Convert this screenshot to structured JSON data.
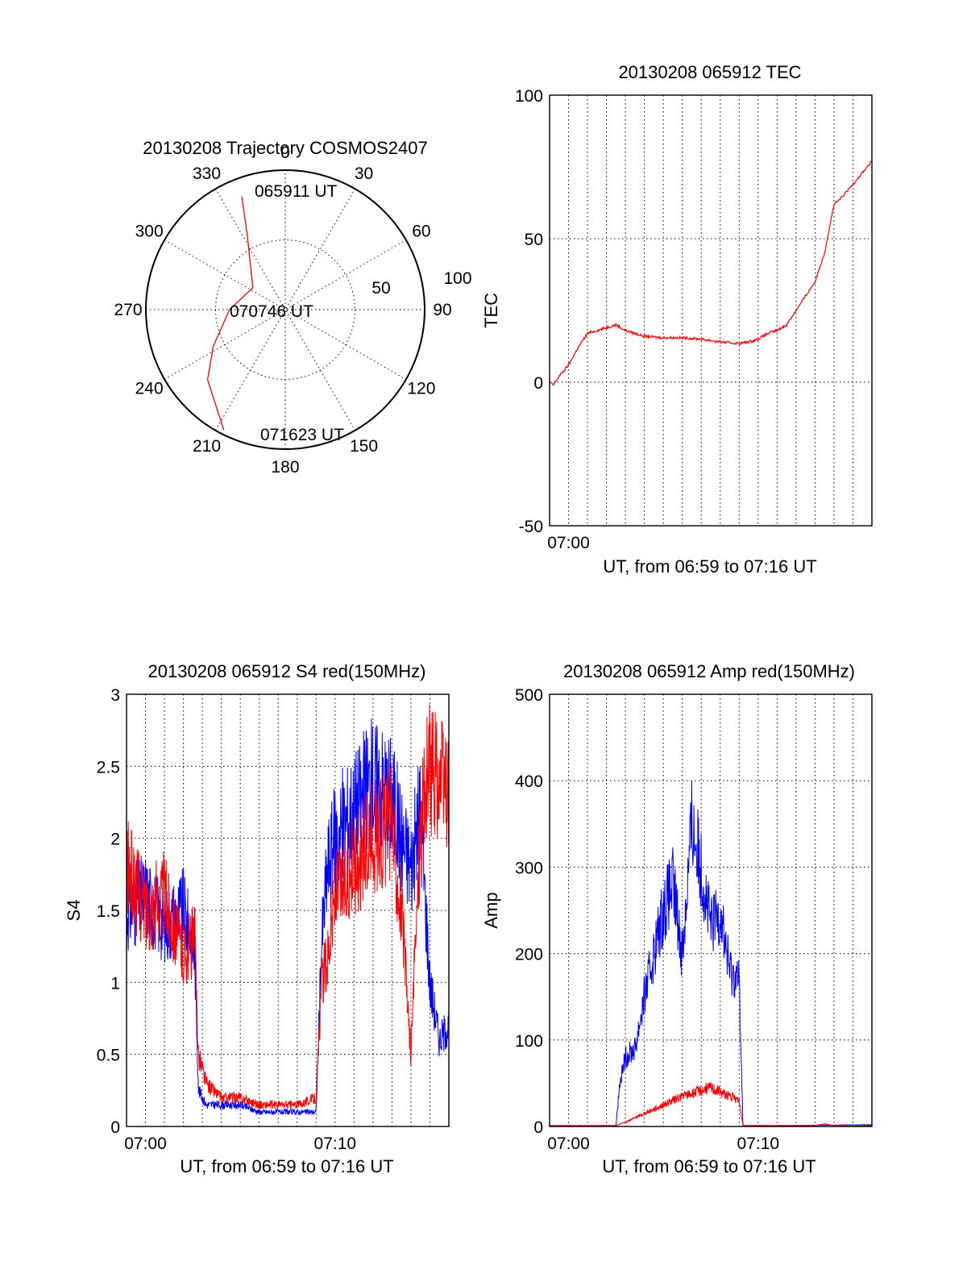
{
  "colors": {
    "red": "#ff0000",
    "blue": "#0000ff",
    "axis": "#000000"
  },
  "chart_data": [
    {
      "type": "polar",
      "title": "20130208 Trajectory COSMOS2407",
      "angle_labels": [
        "0",
        "30",
        "60",
        "90",
        "120",
        "150",
        "180",
        "210",
        "240",
        "270",
        "300",
        "330"
      ],
      "radius_labels": [
        "50",
        "100"
      ],
      "annotations": [
        "065911 UT",
        "070746 UT",
        "071623 UT"
      ],
      "series": [
        {
          "color": "#ff0000",
          "points": [
            [
              339,
              87
            ],
            [
              333,
              60
            ],
            [
              304,
              28
            ],
            [
              270,
              40
            ],
            [
              243,
              58
            ],
            [
              228,
              75
            ],
            [
              207,
              97
            ]
          ]
        }
      ]
    },
    {
      "type": "line",
      "title": "20130208 065912 TEC",
      "ylabel": "TEC",
      "xlabel": "UT, from 06:59 to 07:16 UT",
      "xlim": [
        0,
        17
      ],
      "ylim": [
        -50,
        100
      ],
      "yticks": [
        "-50",
        "0",
        "50",
        "100"
      ],
      "xtick_labels": [
        {
          "x": 1,
          "label": "07:00"
        }
      ],
      "grid": true,
      "series": [
        {
          "color": "#ff0000",
          "x": [
            0,
            0.2,
            0.5,
            1.0,
            1.5,
            2.0,
            2.5,
            3.0,
            3.5,
            4.0,
            5.0,
            6.0,
            7.0,
            8.0,
            9.0,
            10.0,
            10.5,
            11.0,
            11.5,
            12.0,
            12.5,
            13.0,
            13.5,
            14.0,
            14.5,
            15.0,
            15.2,
            15.5,
            16.0,
            16.5,
            17.0
          ],
          "values": [
            0,
            -1,
            2,
            6,
            12,
            17,
            18,
            19,
            20,
            18,
            16,
            15.5,
            15.5,
            15,
            14,
            13.5,
            14,
            15,
            17,
            18,
            20,
            25,
            30,
            35,
            45,
            62,
            63,
            65,
            69,
            73,
            77
          ]
        }
      ]
    },
    {
      "type": "line",
      "title": "20130208 065912 S4 red(150MHz)",
      "ylabel": "S4",
      "xlabel": "UT, from 06:59 to 07:16 UT",
      "xlim": [
        0,
        17
      ],
      "ylim": [
        0,
        3
      ],
      "yticks": [
        "0",
        "0.5",
        "1",
        "1.5",
        "2",
        "2.5",
        "3"
      ],
      "xtick_labels": [
        {
          "x": 1,
          "label": "07:00"
        },
        {
          "x": 11,
          "label": "07:10"
        }
      ],
      "grid": true,
      "series": [
        {
          "color": "#0000ff",
          "x": [
            0,
            1,
            2,
            3,
            3.6,
            3.8,
            4.2,
            5,
            6,
            7,
            8,
            9,
            10,
            10.3,
            10.6,
            11,
            12,
            13,
            14,
            14.5,
            15,
            15.5,
            16,
            16.5,
            17
          ],
          "values": [
            1.5,
            1.6,
            1.4,
            1.5,
            1.2,
            0.25,
            0.15,
            0.15,
            0.15,
            0.1,
            0.1,
            0.1,
            0.1,
            1.3,
            1.8,
            2.0,
            2.2,
            2.4,
            2.3,
            2.0,
            1.8,
            2.2,
            1.0,
            0.6,
            0.7
          ]
        },
        {
          "color": "#ff0000",
          "x": [
            0,
            1,
            2,
            3,
            3.6,
            3.8,
            4.2,
            5,
            6,
            7,
            8,
            9,
            10,
            10.3,
            10.6,
            11,
            12,
            13,
            14,
            14.5,
            15,
            15.5,
            16,
            16.5,
            17
          ],
          "values": [
            1.8,
            1.5,
            1.6,
            1.2,
            1.3,
            0.5,
            0.3,
            0.2,
            0.2,
            0.15,
            0.15,
            0.15,
            0.2,
            1.0,
            1.2,
            1.6,
            1.8,
            2.0,
            2.1,
            1.5,
            0.5,
            2.1,
            2.5,
            2.4,
            2.3
          ]
        }
      ]
    },
    {
      "type": "line",
      "title": "20130208 065912 Amp red(150MHz)",
      "ylabel": "Amp",
      "xlabel": "UT, from 06:59 to 07:16 UT",
      "xlim": [
        0,
        17
      ],
      "ylim": [
        0,
        500
      ],
      "yticks": [
        "0",
        "100",
        "200",
        "300",
        "400",
        "500"
      ],
      "xtick_labels": [
        {
          "x": 1,
          "label": "07:00"
        },
        {
          "x": 11,
          "label": "07:10"
        }
      ],
      "grid": true,
      "series": [
        {
          "color": "#0000ff",
          "x": [
            0,
            3.5,
            3.7,
            4.0,
            4.5,
            5.0,
            5.5,
            6.0,
            6.5,
            7.0,
            7.5,
            8.0,
            8.5,
            9.0,
            9.5,
            10.0,
            10.2,
            10.5,
            12,
            17
          ],
          "values": [
            1,
            1,
            50,
            80,
            90,
            150,
            200,
            250,
            280,
            200,
            350,
            300,
            230,
            250,
            180,
            170,
            1,
            1,
            1,
            2
          ]
        },
        {
          "color": "#ff0000",
          "x": [
            0,
            3.5,
            4.0,
            4.5,
            5.0,
            5.5,
            6.0,
            6.5,
            7.0,
            7.5,
            8.0,
            8.5,
            9.0,
            9.5,
            10.0,
            10.2,
            10.5,
            14,
            14.5,
            15,
            17
          ],
          "values": [
            1,
            1,
            5,
            10,
            15,
            20,
            25,
            30,
            35,
            38,
            42,
            45,
            40,
            35,
            30,
            1,
            1,
            1,
            3,
            1,
            1
          ]
        }
      ]
    }
  ]
}
